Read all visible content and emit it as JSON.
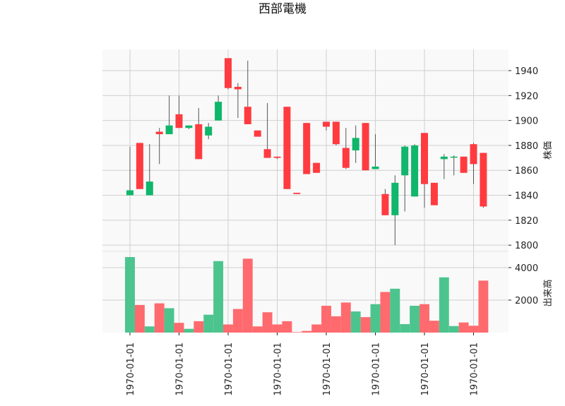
{
  "chart_data": {
    "type": "candlestick",
    "title": "西部電機",
    "ylabel_price": "株価",
    "ylabel_volume": "出来高",
    "price_ylim": [
      1795,
      1957
    ],
    "price_ticks": [
      1800,
      1820,
      1840,
      1860,
      1880,
      1900,
      1920,
      1940
    ],
    "volume_ylim": [
      0,
      5000
    ],
    "volume_ticks": [
      2000,
      4000
    ],
    "x_tick_labels": [
      "1970-01-01",
      "1970-01-01",
      "1970-01-01",
      "1970-01-01",
      "1970-01-01",
      "1970-01-01",
      "1970-01-01",
      "1970-01-01"
    ],
    "x_tick_indices": [
      0,
      5,
      10,
      15,
      20,
      25,
      30,
      35
    ],
    "grid": true,
    "colors": {
      "up": "#0fb66b",
      "down": "#ff3b40",
      "up_volume": "#4cc48e",
      "down_volume": "#ff6a6e",
      "wick": "#555555",
      "panel_bg": "#f9f9f9",
      "grid": "#d0d0d0"
    },
    "candles": [
      {
        "open": 1840,
        "high": 1879,
        "low": 1840,
        "close": 1844,
        "volume": 4650
      },
      {
        "open": 1882,
        "high": 1882,
        "low": 1845,
        "close": 1845,
        "volume": 1700
      },
      {
        "open": 1840,
        "high": 1881,
        "low": 1840,
        "close": 1851,
        "volume": 380
      },
      {
        "open": 1891,
        "high": 1894,
        "low": 1865,
        "close": 1889,
        "volume": 1800
      },
      {
        "open": 1889,
        "high": 1920,
        "low": 1889,
        "close": 1896,
        "volume": 1500
      },
      {
        "open": 1905,
        "high": 1920,
        "low": 1894,
        "close": 1894,
        "volume": 600
      },
      {
        "open": 1894,
        "high": 1896,
        "low": 1893,
        "close": 1896,
        "volume": 230
      },
      {
        "open": 1897,
        "high": 1910,
        "low": 1869,
        "close": 1869,
        "volume": 700
      },
      {
        "open": 1888,
        "high": 1898,
        "low": 1885,
        "close": 1895,
        "volume": 1100
      },
      {
        "open": 1900,
        "high": 1920,
        "low": 1900,
        "close": 1915,
        "volume": 4400
      },
      {
        "open": 1950,
        "high": 1950,
        "low": 1925,
        "close": 1926,
        "volume": 500
      },
      {
        "open": 1927,
        "high": 1930,
        "low": 1902,
        "close": 1925,
        "volume": 1450
      },
      {
        "open": 1911,
        "high": 1948,
        "low": 1897,
        "close": 1897,
        "volume": 4550
      },
      {
        "open": 1892,
        "high": 1892,
        "low": 1887,
        "close": 1887,
        "volume": 380
      },
      {
        "open": 1877,
        "high": 1914,
        "low": 1870,
        "close": 1870,
        "volume": 1250
      },
      {
        "open": 1871,
        "high": 1871,
        "low": 1869,
        "close": 1870,
        "volume": 500
      },
      {
        "open": 1911,
        "high": 1911,
        "low": 1845,
        "close": 1845,
        "volume": 700
      },
      {
        "open": 1842,
        "high": 1842,
        "low": 1841,
        "close": 1841,
        "volume": 30
      },
      {
        "open": 1898,
        "high": 1898,
        "low": 1857,
        "close": 1857,
        "volume": 100
      },
      {
        "open": 1866,
        "high": 1866,
        "low": 1858,
        "close": 1858,
        "volume": 500
      },
      {
        "open": 1899,
        "high": 1899,
        "low": 1892,
        "close": 1895,
        "volume": 1650
      },
      {
        "open": 1899,
        "high": 1899,
        "low": 1880,
        "close": 1881,
        "volume": 1000
      },
      {
        "open": 1878,
        "high": 1894,
        "low": 1861,
        "close": 1862,
        "volume": 1850
      },
      {
        "open": 1876,
        "high": 1896,
        "low": 1866,
        "close": 1886,
        "volume": 1300
      },
      {
        "open": 1898,
        "high": 1898,
        "low": 1860,
        "close": 1860,
        "volume": 950
      },
      {
        "open": 1861,
        "high": 1889,
        "low": 1861,
        "close": 1863,
        "volume": 1750
      },
      {
        "open": 1841,
        "high": 1845,
        "low": 1824,
        "close": 1824,
        "volume": 2500
      },
      {
        "open": 1824,
        "high": 1856,
        "low": 1800,
        "close": 1850,
        "volume": 2700
      },
      {
        "open": 1856,
        "high": 1880,
        "low": 1827,
        "close": 1879,
        "volume": 520
      },
      {
        "open": 1839,
        "high": 1881,
        "low": 1839,
        "close": 1880,
        "volume": 1650
      },
      {
        "open": 1890,
        "high": 1890,
        "low": 1830,
        "close": 1849,
        "volume": 1750
      },
      {
        "open": 1850,
        "high": 1850,
        "low": 1832,
        "close": 1832,
        "volume": 730
      },
      {
        "open": 1869,
        "high": 1873,
        "low": 1853,
        "close": 1871,
        "volume": 3400
      },
      {
        "open": 1871,
        "high": 1872,
        "low": 1856,
        "close": 1871,
        "volume": 400
      },
      {
        "open": 1871,
        "high": 1871,
        "low": 1858,
        "close": 1858,
        "volume": 620
      },
      {
        "open": 1881,
        "high": 1882,
        "low": 1849,
        "close": 1865,
        "volume": 420
      },
      {
        "open": 1874,
        "high": 1874,
        "low": 1830,
        "close": 1831,
        "volume": 3200
      }
    ]
  }
}
